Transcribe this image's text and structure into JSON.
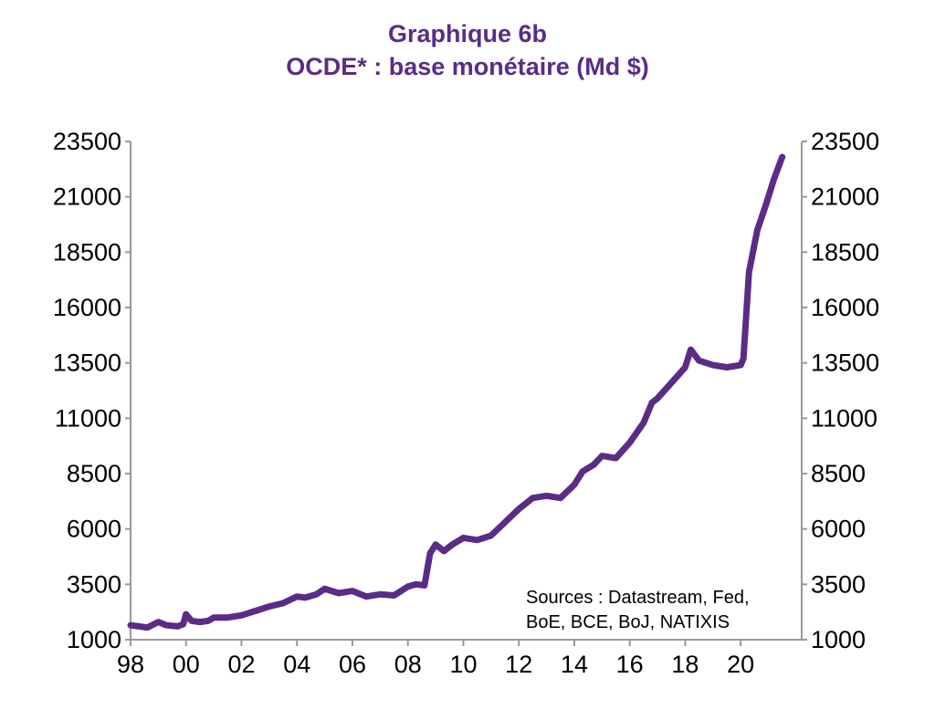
{
  "colors": {
    "series": "#5B2C86",
    "title": "#5B2C86",
    "axis": "#999999"
  },
  "chart_data": {
    "type": "line",
    "title": "Graphique 6b",
    "subtitle": "OCDE* : base monétaire (Md $)",
    "xlabel": "",
    "ylabel": "",
    "x_tick_labels": [
      "98",
      "00",
      "02",
      "04",
      "06",
      "08",
      "10",
      "12",
      "14",
      "16",
      "18",
      "20"
    ],
    "x_tick_years": [
      1998,
      2000,
      2002,
      2004,
      2006,
      2008,
      2010,
      2012,
      2014,
      2016,
      2018,
      2020
    ],
    "xlim": [
      1998,
      2022.2
    ],
    "y_ticks": [
      1000,
      3500,
      6000,
      8500,
      11000,
      13500,
      16000,
      18500,
      21000,
      23500
    ],
    "ylim": [
      1000,
      23500
    ],
    "y_axis_right": true,
    "grid": false,
    "annotation": [
      "Sources : Datastream, Fed,",
      "BoE, BCE, BoJ, NATIXIS"
    ],
    "series": [
      {
        "x": [
          1998.0,
          1998.3,
          1998.6,
          1999.0,
          1999.3,
          1999.7,
          1999.9,
          2000.0,
          2000.2,
          2000.5,
          2000.8,
          2001.0,
          2001.5,
          2002.0,
          2002.5,
          2003.0,
          2003.5,
          2004.0,
          2004.3,
          2004.7,
          2005.0,
          2005.5,
          2006.0,
          2006.5,
          2007.0,
          2007.5,
          2008.0,
          2008.3,
          2008.6,
          2008.8,
          2009.0,
          2009.3,
          2009.6,
          2010.0,
          2010.5,
          2011.0,
          2011.5,
          2012.0,
          2012.5,
          2013.0,
          2013.5,
          2014.0,
          2014.3,
          2014.7,
          2015.0,
          2015.5,
          2016.0,
          2016.5,
          2016.8,
          2017.0,
          2017.5,
          2018.0,
          2018.2,
          2018.5,
          2019.0,
          2019.5,
          2020.0,
          2020.1,
          2020.3,
          2020.6,
          2020.9,
          2021.2,
          2021.5
        ],
        "values": [
          1650,
          1600,
          1550,
          1800,
          1650,
          1600,
          1700,
          2150,
          1850,
          1800,
          1850,
          2000,
          2000,
          2100,
          2300,
          2500,
          2650,
          2950,
          2900,
          3050,
          3300,
          3100,
          3200,
          2950,
          3050,
          3000,
          3400,
          3500,
          3450,
          4900,
          5300,
          5000,
          5300,
          5600,
          5500,
          5700,
          6300,
          6900,
          7400,
          7500,
          7400,
          8000,
          8600,
          8900,
          9300,
          9200,
          9900,
          10800,
          11700,
          11900,
          12600,
          13300,
          14100,
          13600,
          13400,
          13300,
          13400,
          13700,
          17600,
          19500,
          20600,
          21800,
          22800
        ]
      }
    ]
  }
}
